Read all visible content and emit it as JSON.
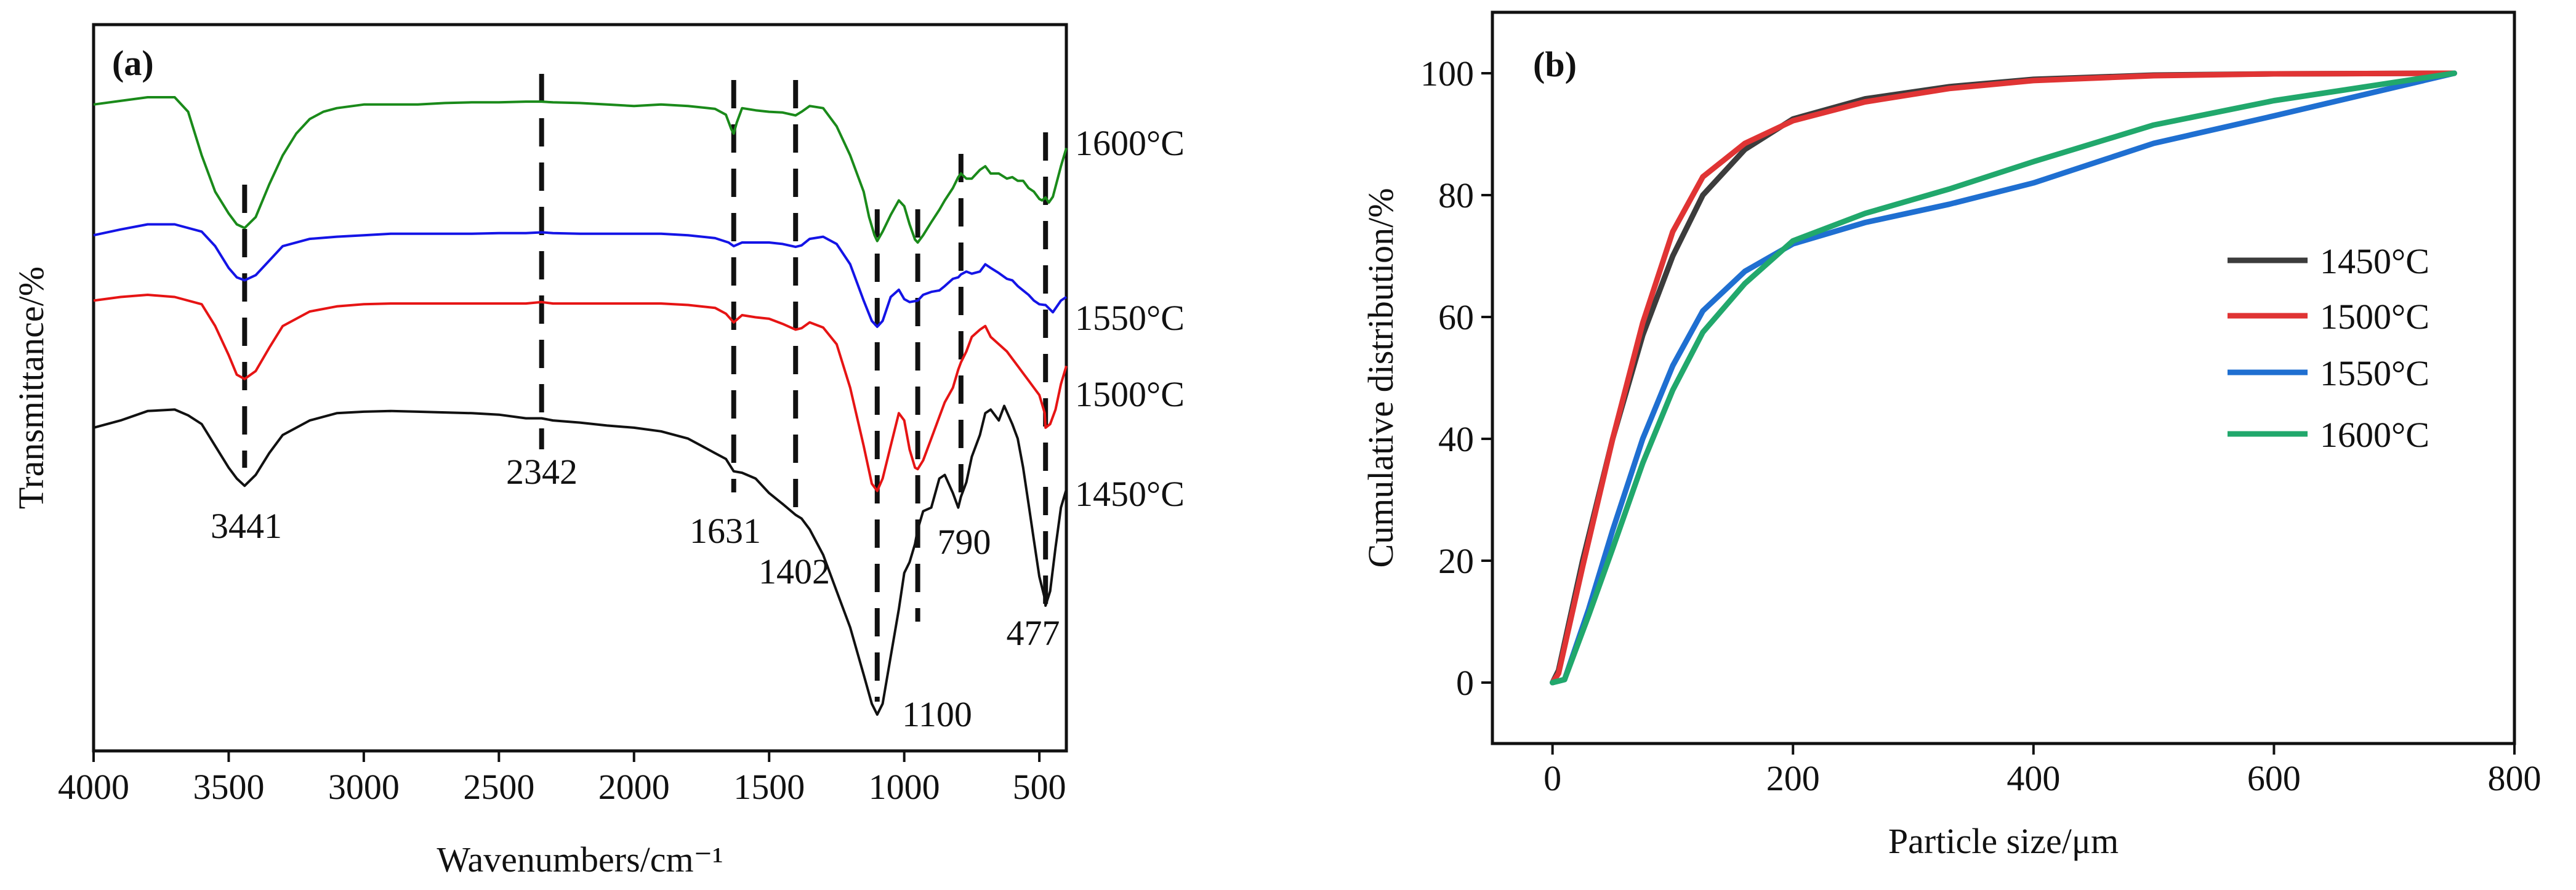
{
  "chart_data": [
    {
      "panel_label": "(a)",
      "type": "line",
      "title": "",
      "xlabel": "Wavenumbers/cm⁻¹",
      "ylabel": "Transmittance/%",
      "xlim": [
        4000,
        400
      ],
      "x_reversed": true,
      "xticks": [
        4000,
        3500,
        3000,
        2500,
        2000,
        1500,
        1000,
        500
      ],
      "yticks_shown": false,
      "y_units": "arbitrary transmittance, stacked with offsets (0 = bottom of frame, 100 = top)",
      "series": [
        {
          "name": "1600°C",
          "color": "#1a8a1a",
          "x": [
            4000,
            3900,
            3800,
            3700,
            3650,
            3600,
            3550,
            3500,
            3470,
            3441,
            3400,
            3350,
            3300,
            3250,
            3200,
            3150,
            3100,
            3000,
            2900,
            2800,
            2700,
            2600,
            2500,
            2400,
            2342,
            2300,
            2200,
            2100,
            2000,
            1900,
            1800,
            1700,
            1660,
            1640,
            1631,
            1620,
            1600,
            1550,
            1500,
            1450,
            1402,
            1380,
            1350,
            1300,
            1250,
            1200,
            1150,
            1130,
            1110,
            1100,
            1080,
            1050,
            1020,
            1000,
            980,
            960,
            950,
            930,
            900,
            870,
            850,
            820,
            800,
            790,
            770,
            750,
            720,
            700,
            680,
            650,
            620,
            600,
            580,
            560,
            540,
            520,
            500,
            490,
            477,
            465,
            450,
            420,
            400
          ],
          "y": [
            89.0,
            89.5,
            90.0,
            90.0,
            88.0,
            82.0,
            77.0,
            74.0,
            72.5,
            72.0,
            73.5,
            78.0,
            82.0,
            85.0,
            87.0,
            88.0,
            88.5,
            89.0,
            89.0,
            89.0,
            89.2,
            89.3,
            89.3,
            89.4,
            89.4,
            89.3,
            89.2,
            89.0,
            88.8,
            89.0,
            88.8,
            88.4,
            87.6,
            85.6,
            85.0,
            86.5,
            88.5,
            88.2,
            88.0,
            87.9,
            87.5,
            88.0,
            88.8,
            88.5,
            86.0,
            82.0,
            77.0,
            73.5,
            71.0,
            70.2,
            71.5,
            73.8,
            75.8,
            75.0,
            72.5,
            70.4,
            70.0,
            71.0,
            72.8,
            74.5,
            75.8,
            77.5,
            79.0,
            79.5,
            78.8,
            78.8,
            80.0,
            80.5,
            79.5,
            79.5,
            78.8,
            79.0,
            78.5,
            78.5,
            77.5,
            77.0,
            76.0,
            75.8,
            76.2,
            75.5,
            76.3,
            80.5,
            83.0
          ]
        },
        {
          "name": "1550°C",
          "color": "#1414e6",
          "x": [
            4000,
            3900,
            3800,
            3700,
            3600,
            3550,
            3500,
            3470,
            3441,
            3400,
            3350,
            3300,
            3200,
            3100,
            3000,
            2900,
            2800,
            2700,
            2600,
            2500,
            2400,
            2342,
            2300,
            2200,
            2100,
            2000,
            1900,
            1800,
            1700,
            1650,
            1631,
            1600,
            1550,
            1500,
            1450,
            1402,
            1380,
            1350,
            1300,
            1250,
            1200,
            1150,
            1120,
            1100,
            1080,
            1050,
            1020,
            1000,
            980,
            950,
            930,
            900,
            870,
            850,
            820,
            800,
            790,
            770,
            750,
            720,
            700,
            680,
            650,
            620,
            600,
            580,
            560,
            540,
            520,
            500,
            480,
            477,
            450,
            420,
            400
          ],
          "y": [
            71.0,
            71.8,
            72.5,
            72.5,
            71.5,
            69.5,
            66.5,
            65.2,
            64.8,
            65.5,
            67.5,
            69.5,
            70.5,
            70.8,
            71.0,
            71.2,
            71.2,
            71.2,
            71.2,
            71.3,
            71.3,
            71.4,
            71.3,
            71.2,
            71.2,
            71.2,
            71.2,
            71.0,
            70.6,
            70.0,
            69.5,
            70.0,
            70.0,
            70.0,
            69.8,
            69.4,
            69.6,
            70.5,
            70.8,
            69.8,
            67.0,
            62.0,
            59.2,
            58.4,
            59.2,
            62.5,
            63.5,
            62.2,
            61.8,
            62.0,
            62.8,
            63.2,
            63.4,
            64.0,
            65.0,
            65.2,
            65.6,
            66.0,
            65.7,
            66.0,
            67.0,
            66.5,
            65.8,
            65.0,
            64.8,
            64.0,
            63.4,
            62.8,
            62.0,
            61.5,
            61.4,
            61.4,
            60.4,
            62.0,
            62.5
          ]
        },
        {
          "name": "1500°C",
          "color": "#e61414",
          "x": [
            4000,
            3900,
            3800,
            3700,
            3600,
            3550,
            3500,
            3470,
            3441,
            3400,
            3350,
            3300,
            3200,
            3100,
            3000,
            2900,
            2800,
            2700,
            2600,
            2500,
            2400,
            2342,
            2300,
            2200,
            2100,
            2000,
            1900,
            1800,
            1700,
            1660,
            1631,
            1600,
            1550,
            1500,
            1450,
            1402,
            1380,
            1350,
            1300,
            1250,
            1200,
            1150,
            1120,
            1100,
            1080,
            1050,
            1020,
            1000,
            980,
            960,
            950,
            930,
            900,
            870,
            850,
            820,
            800,
            790,
            770,
            750,
            720,
            700,
            680,
            650,
            620,
            600,
            580,
            560,
            540,
            520,
            500,
            480,
            477,
            460,
            440,
            420,
            400
          ],
          "y": [
            62.0,
            62.5,
            62.8,
            62.5,
            61.5,
            58.5,
            54.5,
            51.8,
            51.2,
            52.3,
            55.5,
            58.5,
            60.5,
            61.2,
            61.5,
            61.6,
            61.6,
            61.6,
            61.6,
            61.6,
            61.6,
            61.8,
            61.6,
            61.6,
            61.6,
            61.6,
            61.6,
            61.4,
            61.0,
            60.2,
            59.0,
            60.0,
            59.7,
            59.5,
            58.8,
            58.0,
            58.2,
            59.0,
            58.3,
            56.0,
            50.0,
            42.0,
            36.8,
            35.8,
            37.5,
            42.0,
            46.5,
            45.5,
            41.5,
            39.0,
            38.8,
            40.0,
            43.0,
            46.0,
            48.0,
            50.0,
            52.5,
            53.5,
            55.0,
            57.0,
            58.0,
            58.5,
            57.0,
            56.0,
            55.0,
            54.0,
            53.0,
            52.0,
            51.0,
            50.0,
            49.0,
            46.5,
            44.5,
            45.0,
            47.0,
            50.5,
            53.0
          ]
        },
        {
          "name": "1450°C",
          "color": "#111111",
          "x": [
            4000,
            3900,
            3800,
            3700,
            3650,
            3600,
            3550,
            3500,
            3470,
            3441,
            3400,
            3350,
            3300,
            3200,
            3100,
            3000,
            2900,
            2800,
            2700,
            2600,
            2500,
            2400,
            2342,
            2300,
            2200,
            2100,
            2000,
            1900,
            1800,
            1750,
            1700,
            1660,
            1631,
            1600,
            1550,
            1500,
            1450,
            1402,
            1380,
            1350,
            1300,
            1250,
            1200,
            1150,
            1120,
            1100,
            1080,
            1050,
            1020,
            1000,
            980,
            960,
            950,
            930,
            900,
            870,
            850,
            820,
            800,
            790,
            770,
            750,
            720,
            700,
            680,
            650,
            630,
            600,
            580,
            560,
            540,
            520,
            500,
            480,
            477,
            460,
            440,
            420,
            400
          ],
          "y": [
            44.5,
            45.5,
            46.8,
            47.0,
            46.2,
            45.0,
            42.0,
            39.0,
            37.5,
            36.5,
            38.0,
            41.0,
            43.5,
            45.5,
            46.5,
            46.7,
            46.8,
            46.7,
            46.6,
            46.5,
            46.3,
            45.8,
            45.8,
            45.5,
            45.2,
            44.8,
            44.5,
            44.0,
            43.0,
            42.0,
            41.0,
            40.2,
            38.5,
            38.3,
            37.5,
            35.5,
            34.0,
            32.5,
            32.0,
            30.5,
            27.0,
            22.0,
            17.0,
            10.5,
            6.5,
            5.0,
            6.5,
            13.0,
            19.5,
            24.5,
            26.0,
            28.5,
            30.5,
            33.0,
            33.5,
            37.5,
            38.0,
            35.5,
            33.5,
            35.0,
            37.0,
            40.5,
            43.5,
            46.5,
            47.0,
            45.5,
            47.5,
            45.0,
            43.0,
            39.0,
            34.0,
            29.0,
            24.0,
            21.0,
            20.0,
            22.0,
            28.0,
            33.5,
            36.0
          ]
        }
      ],
      "peak_annotations": [
        {
          "label": "3441",
          "x": 3441
        },
        {
          "label": "2342",
          "x": 2342
        },
        {
          "label": "1631",
          "x": 1631
        },
        {
          "label": "1402",
          "x": 1402
        },
        {
          "label": "1100",
          "x": 1100
        },
        {
          "label": "790",
          "x": 790
        },
        {
          "label": "477",
          "x": 477
        }
      ],
      "dashed_marker_lines": [
        3441,
        2342,
        1631,
        1402,
        1100,
        950,
        790,
        477
      ],
      "curve_labels": [
        "1600°C",
        "1550°C",
        "1500°C",
        "1450°C"
      ]
    },
    {
      "panel_label": "(b)",
      "type": "line",
      "title": "",
      "xlabel": "Particle size/μm",
      "ylabel": "Cumulative distribution/%",
      "xlim": [
        -50,
        800
      ],
      "ylim": [
        -10,
        110
      ],
      "xticks": [
        0,
        200,
        400,
        600,
        800
      ],
      "yticks": [
        0,
        20,
        40,
        60,
        80,
        100
      ],
      "legend_position": "center-right",
      "series": [
        {
          "name": "1450°C",
          "color": "#3c3c3c",
          "x": [
            0,
            5,
            25,
            50,
            75,
            100,
            125,
            160,
            200,
            260,
            330,
            400,
            500,
            600,
            750
          ],
          "y": [
            0,
            2,
            20,
            40,
            57,
            70,
            80,
            87.5,
            92.5,
            95.8,
            97.8,
            99,
            99.7,
            99.9,
            100
          ]
        },
        {
          "name": "1500°C",
          "color": "#e03434",
          "x": [
            0,
            5,
            25,
            50,
            75,
            100,
            125,
            160,
            200,
            260,
            330,
            400,
            500,
            600,
            750
          ],
          "y": [
            0,
            1.5,
            19,
            40,
            59,
            74,
            83,
            88.5,
            92.2,
            95.3,
            97.5,
            98.8,
            99.6,
            99.9,
            100
          ]
        },
        {
          "name": "1550°C",
          "color": "#1f6fd1",
          "x": [
            0,
            10,
            30,
            50,
            75,
            100,
            125,
            160,
            200,
            260,
            330,
            400,
            500,
            600,
            750
          ],
          "y": [
            0,
            0.5,
            12,
            25,
            40,
            52,
            61,
            67.5,
            72,
            75.5,
            78.5,
            82,
            88.5,
            93,
            100
          ]
        },
        {
          "name": "1600°C",
          "color": "#21a86c",
          "x": [
            0,
            10,
            30,
            50,
            75,
            100,
            125,
            160,
            200,
            260,
            330,
            400,
            500,
            600,
            750
          ],
          "y": [
            0,
            0.5,
            11,
            22,
            36,
            48,
            57.5,
            65.5,
            72.5,
            77,
            81,
            85.5,
            91.5,
            95.5,
            100
          ]
        }
      ]
    }
  ]
}
